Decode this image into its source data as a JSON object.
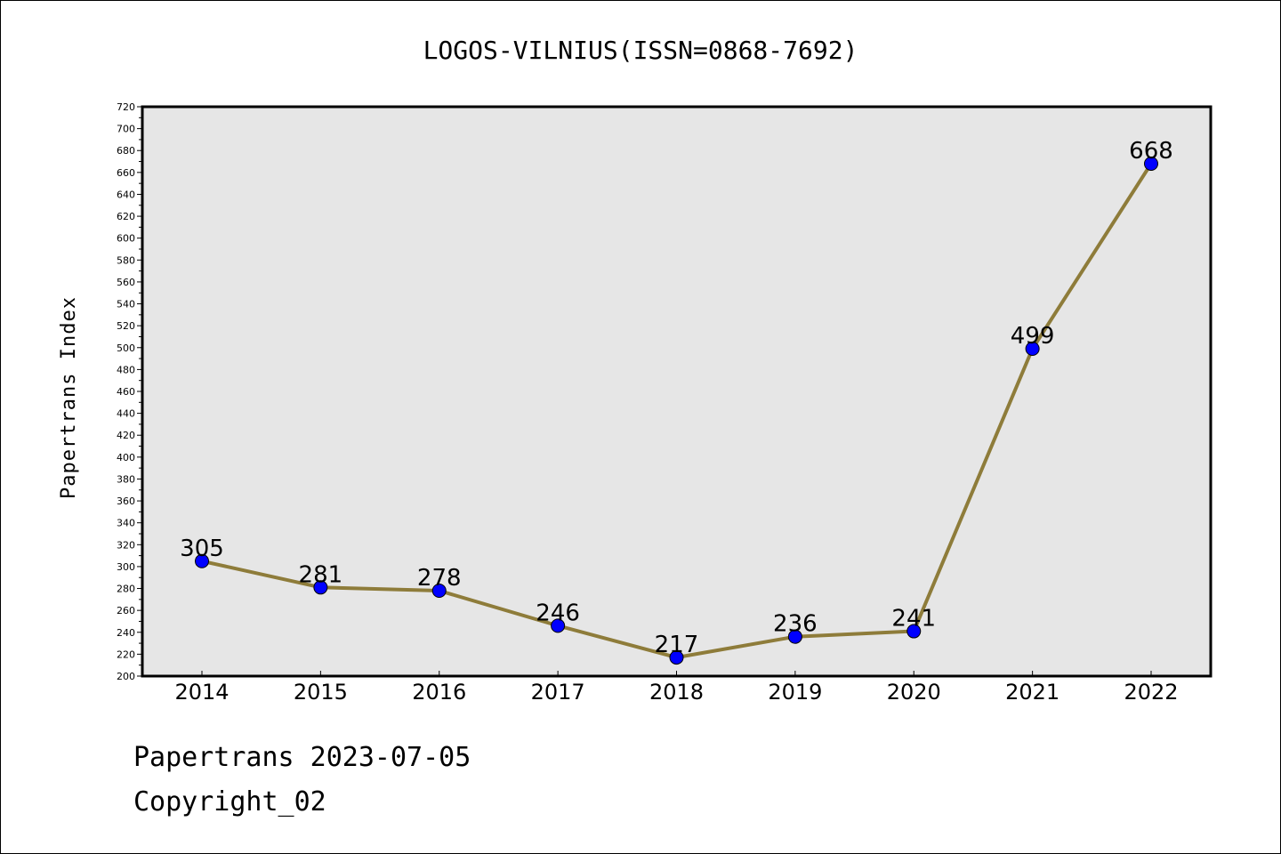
{
  "chart_data": {
    "type": "line",
    "title": "LOGOS-VILNIUS(ISSN=0868-7692)",
    "xlabel": "",
    "ylabel": "Papertrans Index",
    "categories": [
      "2014",
      "2015",
      "2016",
      "2017",
      "2018",
      "2019",
      "2020",
      "2021",
      "2022"
    ],
    "series": [
      {
        "values": [
          305,
          281,
          278,
          246,
          217,
          236,
          241,
          499,
          668
        ]
      }
    ],
    "ylim": [
      200,
      720
    ],
    "yticks": [
      200,
      220,
      240,
      260,
      280,
      300,
      320,
      340,
      360,
      380,
      400,
      420,
      440,
      460,
      480,
      500,
      520,
      540,
      560,
      580,
      600,
      620,
      640,
      660,
      680,
      700,
      720
    ],
    "grid": false,
    "legend": "none",
    "colors": {
      "line": "#8e7c3a",
      "marker": "#0000ff",
      "plot_bg": "#e6e6e6"
    }
  },
  "footer": {
    "date_line": "Papertrans 2023-07-05",
    "copyright": "Copyright_02"
  }
}
